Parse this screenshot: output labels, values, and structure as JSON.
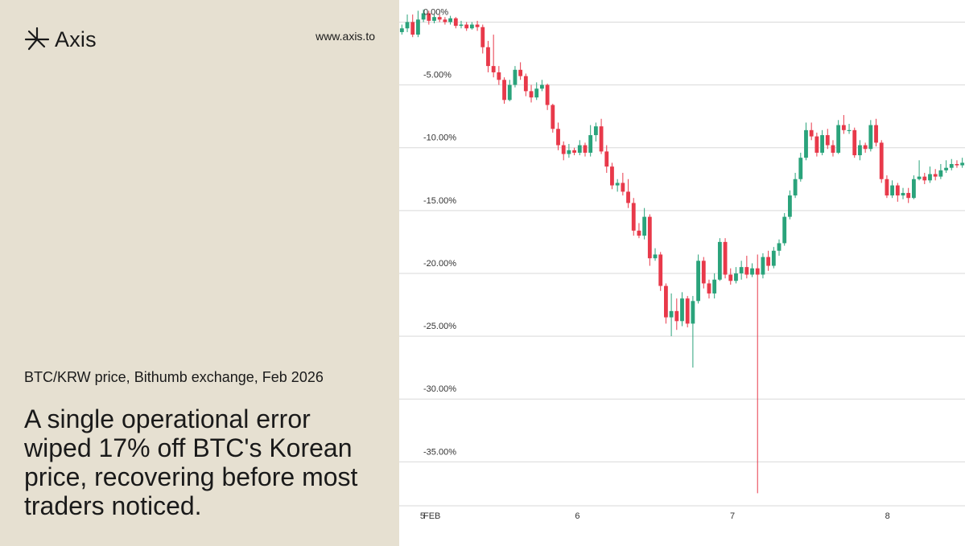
{
  "brand": {
    "name": "Axis",
    "logo_icon": "starburst-icon"
  },
  "website": "www.axis.to",
  "subtitle": "BTC/KRW price, Bithumb exchange, Feb 2026",
  "headline": "A single operational error wiped 17% off BTC's Korean price, recovering before most traders noticed.",
  "colors": {
    "panel": "#e6e0d1",
    "up": "#2aa37b",
    "down": "#e8394a",
    "grid": "#d9d9d9",
    "text": "#1a1a1a"
  },
  "chart_data": {
    "type": "candlestick",
    "y_unit": "percent change",
    "ylim": [
      -38.5,
      1.5
    ],
    "grid": true,
    "y_ticks": [
      {
        "value": 0,
        "label": "0.00%"
      },
      {
        "value": -5,
        "label": "-5.00%"
      },
      {
        "value": -10,
        "label": "-10.00%"
      },
      {
        "value": -15,
        "label": "-15.00%"
      },
      {
        "value": -20,
        "label": "-20.00%"
      },
      {
        "value": -25,
        "label": "-25.00%"
      },
      {
        "value": -30,
        "label": "-30.00%"
      },
      {
        "value": -35,
        "label": "-35.00%"
      }
    ],
    "x_range": [
      4.85,
      8.5
    ],
    "x_ticks": [
      {
        "value": 4.6,
        "label": "FEB"
      },
      {
        "value": 5.0,
        "label": "5"
      },
      {
        "value": 6.0,
        "label": "6"
      },
      {
        "value": 7.0,
        "label": "7"
      },
      {
        "value": 8.0,
        "label": "8"
      }
    ],
    "candles": [
      [
        -0.8,
        -0.5,
        -0.2,
        -1.0
      ],
      [
        -0.5,
        0.0,
        0.6,
        -0.8
      ],
      [
        0.0,
        -1.0,
        0.6,
        -1.2
      ],
      [
        -1.0,
        0.2,
        0.9,
        -1.2
      ],
      [
        0.2,
        0.7,
        1.0,
        0.0
      ],
      [
        0.7,
        0.1,
        0.9,
        -0.2
      ],
      [
        0.1,
        0.4,
        0.6,
        -0.1
      ],
      [
        0.4,
        0.2,
        0.6,
        0.0
      ],
      [
        0.2,
        0.0,
        0.4,
        -0.2
      ],
      [
        0.0,
        0.3,
        0.5,
        -0.2
      ],
      [
        0.3,
        -0.3,
        0.4,
        -0.5
      ],
      [
        -0.3,
        -0.2,
        0.1,
        -0.5
      ],
      [
        -0.2,
        -0.5,
        0.0,
        -0.7
      ],
      [
        -0.5,
        -0.2,
        0.0,
        -0.6
      ],
      [
        -0.2,
        -0.4,
        0.1,
        -0.7
      ],
      [
        -0.4,
        -2.0,
        -0.2,
        -2.5
      ],
      [
        -2.0,
        -3.5,
        -1.5,
        -4.0
      ],
      [
        -3.5,
        -4.0,
        -1.0,
        -4.4
      ],
      [
        -4.0,
        -4.6,
        -3.5,
        -5.0
      ],
      [
        -4.6,
        -6.2,
        -4.4,
        -6.5
      ],
      [
        -6.2,
        -5.0,
        -4.6,
        -6.3
      ],
      [
        -5.0,
        -3.8,
        -3.5,
        -5.2
      ],
      [
        -3.8,
        -4.3,
        -3.2,
        -4.6
      ],
      [
        -4.3,
        -5.5,
        -4.1,
        -5.9
      ],
      [
        -5.5,
        -6.0,
        -5.0,
        -6.4
      ],
      [
        -6.0,
        -5.3,
        -4.8,
        -6.2
      ],
      [
        -5.3,
        -5.0,
        -4.6,
        -5.5
      ],
      [
        -5.0,
        -6.6,
        -4.9,
        -7.0
      ],
      [
        -6.6,
        -8.5,
        -6.5,
        -8.8
      ],
      [
        -8.5,
        -9.8,
        -8.0,
        -10.2
      ],
      [
        -9.8,
        -10.5,
        -9.5,
        -11.0
      ],
      [
        -10.5,
        -10.2,
        -9.7,
        -10.8
      ],
      [
        -10.2,
        -10.4,
        -10.0,
        -10.6
      ],
      [
        -10.4,
        -9.8,
        -9.4,
        -10.6
      ],
      [
        -9.8,
        -10.4,
        -9.6,
        -10.7
      ],
      [
        -10.4,
        -9.0,
        -8.2,
        -10.7
      ],
      [
        -9.0,
        -8.3,
        -8.0,
        -9.5
      ],
      [
        -8.3,
        -10.3,
        -7.7,
        -10.5
      ],
      [
        -10.3,
        -11.5,
        -9.8,
        -12.0
      ],
      [
        -11.5,
        -13.0,
        -11.2,
        -13.3
      ],
      [
        -13.0,
        -12.8,
        -12.5,
        -13.5
      ],
      [
        -12.8,
        -13.5,
        -12.0,
        -13.8
      ],
      [
        -13.5,
        -14.4,
        -12.5,
        -14.8
      ],
      [
        -14.4,
        -16.6,
        -14.0,
        -17.0
      ],
      [
        -16.6,
        -17.0,
        -16.0,
        -17.2
      ],
      [
        -17.0,
        -15.5,
        -14.8,
        -17.3
      ],
      [
        -15.5,
        -18.8,
        -15.3,
        -19.4
      ],
      [
        -18.8,
        -18.5,
        -18.0,
        -19.0
      ],
      [
        -18.5,
        -21.0,
        -18.3,
        -21.4
      ],
      [
        -21.0,
        -23.5,
        -20.8,
        -24.0
      ],
      [
        -23.5,
        -23.0,
        -21.6,
        -25.0
      ],
      [
        -23.0,
        -23.8,
        -22.0,
        -24.5
      ],
      [
        -23.8,
        -22.0,
        -21.5,
        -24.2
      ],
      [
        -22.0,
        -24.0,
        -21.8,
        -24.3
      ],
      [
        -24.0,
        -22.2,
        -21.8,
        -27.5
      ],
      [
        -22.2,
        -19.0,
        -18.5,
        -22.4
      ],
      [
        -19.0,
        -20.8,
        -18.7,
        -21.2
      ],
      [
        -20.8,
        -21.6,
        -20.5,
        -22.0
      ],
      [
        -21.6,
        -20.5,
        -20.0,
        -22.0
      ],
      [
        -20.5,
        -17.5,
        -17.2,
        -20.6
      ],
      [
        -17.5,
        -20.1,
        -17.2,
        -20.4
      ],
      [
        -20.1,
        -20.6,
        -19.6,
        -20.9
      ],
      [
        -20.6,
        -20.0,
        -19.5,
        -20.8
      ],
      [
        -20.0,
        -19.5,
        -19.0,
        -20.5
      ],
      [
        -19.5,
        -20.1,
        -18.6,
        -20.4
      ],
      [
        -20.1,
        -19.6,
        -19.2,
        -20.3
      ],
      [
        -19.6,
        -20.1,
        -18.5,
        -37.5
      ],
      [
        -20.1,
        -18.7,
        -18.4,
        -20.4
      ],
      [
        -18.7,
        -19.4,
        -18.2,
        -19.8
      ],
      [
        -19.4,
        -18.2,
        -17.9,
        -19.6
      ],
      [
        -18.2,
        -17.6,
        -17.3,
        -18.6
      ],
      [
        -17.6,
        -15.5,
        -15.2,
        -17.8
      ],
      [
        -15.5,
        -13.8,
        -13.4,
        -15.7
      ],
      [
        -13.8,
        -12.5,
        -12.0,
        -14.0
      ],
      [
        -12.5,
        -10.8,
        -10.4,
        -12.7
      ],
      [
        -10.8,
        -8.6,
        -8.0,
        -11.0
      ],
      [
        -8.6,
        -9.1,
        -8.0,
        -9.4
      ],
      [
        -9.1,
        -10.4,
        -8.8,
        -10.7
      ],
      [
        -10.4,
        -9.0,
        -8.6,
        -10.6
      ],
      [
        -9.0,
        -9.8,
        -8.5,
        -10.1
      ],
      [
        -9.8,
        -10.4,
        -9.4,
        -10.7
      ],
      [
        -10.4,
        -8.2,
        -7.8,
        -10.5
      ],
      [
        -8.2,
        -8.6,
        -7.4,
        -8.9
      ],
      [
        -8.6,
        -8.6,
        -8.1,
        -8.9
      ],
      [
        -8.6,
        -10.6,
        -8.4,
        -10.8
      ],
      [
        -10.6,
        -9.8,
        -9.4,
        -11.0
      ],
      [
        -9.8,
        -10.1,
        -9.6,
        -10.4
      ],
      [
        -10.1,
        -8.2,
        -7.8,
        -10.3
      ],
      [
        -8.2,
        -9.6,
        -7.7,
        -9.9
      ],
      [
        -9.6,
        -12.5,
        -9.4,
        -12.8
      ],
      [
        -12.5,
        -13.8,
        -12.2,
        -14.0
      ],
      [
        -13.8,
        -13.0,
        -12.6,
        -14.0
      ],
      [
        -13.0,
        -13.8,
        -12.8,
        -14.3
      ],
      [
        -13.8,
        -13.6,
        -13.2,
        -14.1
      ],
      [
        -13.6,
        -14.0,
        -13.2,
        -14.4
      ],
      [
        -14.0,
        -12.5,
        -12.2,
        -14.1
      ],
      [
        -12.5,
        -12.3,
        -11.0,
        -12.6
      ],
      [
        -12.3,
        -12.6,
        -12.0,
        -12.9
      ],
      [
        -12.6,
        -12.1,
        -11.5,
        -12.8
      ],
      [
        -12.1,
        -12.3,
        -11.7,
        -12.6
      ],
      [
        -12.3,
        -11.8,
        -11.3,
        -12.5
      ],
      [
        -11.8,
        -11.6,
        -11.0,
        -12.0
      ],
      [
        -11.6,
        -11.3,
        -10.9,
        -11.8
      ],
      [
        -11.3,
        -11.4,
        -11.0,
        -11.6
      ],
      [
        -11.4,
        -11.2,
        -10.8,
        -11.6
      ]
    ]
  }
}
